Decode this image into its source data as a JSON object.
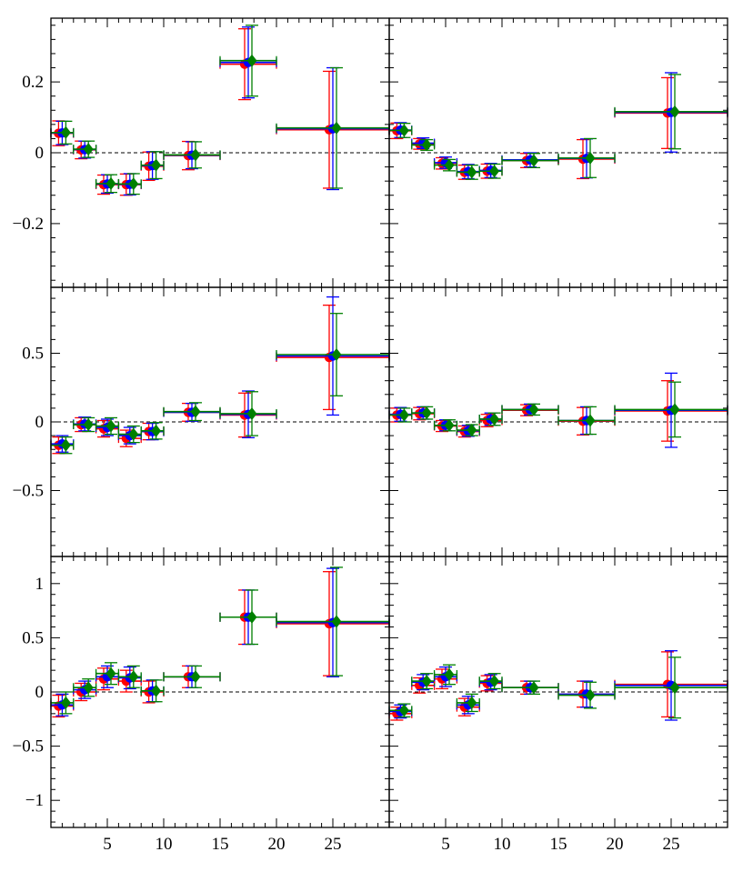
{
  "series_colors": [
    "#ff0000",
    "#0000ff",
    "#008000"
  ],
  "chart_data": [
    {
      "type": "scatter",
      "panel": "top-left",
      "xlim": [
        0,
        30
      ],
      "ylim": [
        -0.38,
        0.38
      ],
      "x_ticks": [],
      "y_ticks": [
        -0.2,
        0,
        0.2
      ],
      "y_tick_labels": [
        "−0.2",
        "0",
        "0.2"
      ],
      "zero_line": true,
      "points": [
        {
          "xlo": 0,
          "xhi": 2,
          "x": 1,
          "ys": [
            0.055,
            0.056,
            0.057
          ],
          "errs": [
            0.035,
            0.033,
            0.032
          ]
        },
        {
          "xlo": 2,
          "xhi": 4,
          "x": 3,
          "ys": [
            0.008,
            0.009,
            0.01
          ],
          "errs": [
            0.025,
            0.024,
            0.023
          ]
        },
        {
          "xlo": 4,
          "xhi": 6,
          "x": 5,
          "ys": [
            -0.09,
            -0.088,
            -0.087
          ],
          "errs": [
            0.027,
            0.026,
            0.025
          ]
        },
        {
          "xlo": 6,
          "xhi": 8,
          "x": 7,
          "ys": [
            -0.09,
            -0.089,
            -0.088
          ],
          "errs": [
            0.03,
            0.03,
            0.029
          ]
        },
        {
          "xlo": 8,
          "xhi": 10,
          "x": 9,
          "ys": [
            -0.038,
            -0.036,
            -0.035
          ],
          "errs": [
            0.04,
            0.039,
            0.038
          ]
        },
        {
          "xlo": 10,
          "xhi": 15,
          "x": 12.5,
          "ys": [
            -0.008,
            -0.007,
            -0.006
          ],
          "errs": [
            0.04,
            0.038,
            0.037
          ]
        },
        {
          "xlo": 15,
          "xhi": 20,
          "x": 17.5,
          "ys": [
            0.25,
            0.255,
            0.26
          ],
          "errs": [
            0.1,
            0.1,
            0.1
          ]
        },
        {
          "xlo": 20,
          "xhi": 30,
          "x": 25,
          "ys": [
            0.065,
            0.068,
            0.07
          ],
          "errs": [
            0.165,
            0.172,
            0.17
          ]
        }
      ]
    },
    {
      "type": "scatter",
      "panel": "top-right",
      "xlim": [
        0,
        30
      ],
      "ylim": [
        -0.38,
        0.38
      ],
      "x_ticks": [],
      "y_ticks": [],
      "y_tick_labels": [],
      "zero_line": true,
      "points": [
        {
          "xlo": 0,
          "xhi": 2,
          "x": 1,
          "ys": [
            0.062,
            0.064,
            0.063
          ],
          "errs": [
            0.022,
            0.021,
            0.02
          ]
        },
        {
          "xlo": 2,
          "xhi": 4,
          "x": 3,
          "ys": [
            0.025,
            0.027,
            0.022
          ],
          "errs": [
            0.015,
            0.015,
            0.015
          ]
        },
        {
          "xlo": 4,
          "xhi": 6,
          "x": 5,
          "ys": [
            -0.03,
            -0.028,
            -0.035
          ],
          "errs": [
            0.016,
            0.016,
            0.016
          ]
        },
        {
          "xlo": 6,
          "xhi": 8,
          "x": 7,
          "ys": [
            -0.055,
            -0.053,
            -0.055
          ],
          "errs": [
            0.02,
            0.02,
            0.02
          ]
        },
        {
          "xlo": 8,
          "xhi": 10,
          "x": 9,
          "ys": [
            -0.052,
            -0.05,
            -0.052
          ],
          "errs": [
            0.02,
            0.02,
            0.02
          ]
        },
        {
          "xlo": 10,
          "xhi": 15,
          "x": 12.5,
          "ys": [
            -0.022,
            -0.02,
            -0.022
          ],
          "errs": [
            0.02,
            0.02,
            0.02
          ]
        },
        {
          "xlo": 15,
          "xhi": 20,
          "x": 17.5,
          "ys": [
            -0.018,
            -0.016,
            -0.015
          ],
          "errs": [
            0.055,
            0.055,
            0.055
          ]
        },
        {
          "xlo": 20,
          "xhi": 30,
          "x": 25,
          "ys": [
            0.112,
            0.114,
            0.116
          ],
          "errs": [
            0.1,
            0.112,
            0.105
          ]
        }
      ]
    },
    {
      "type": "scatter",
      "panel": "middle-left",
      "xlim": [
        0,
        30
      ],
      "ylim": [
        -0.98,
        0.98
      ],
      "x_ticks": [],
      "y_ticks": [
        -0.5,
        0,
        0.5
      ],
      "y_tick_labels": [
        "−0.5",
        "0",
        "0.5"
      ],
      "zero_line": true,
      "points": [
        {
          "xlo": 0,
          "xhi": 2,
          "x": 1,
          "ys": [
            -0.17,
            -0.16,
            -0.17
          ],
          "errs": [
            0.06,
            0.06,
            0.06
          ]
        },
        {
          "xlo": 2,
          "xhi": 4,
          "x": 3,
          "ys": [
            -0.02,
            -0.015,
            -0.02
          ],
          "errs": [
            0.05,
            0.05,
            0.05
          ]
        },
        {
          "xlo": 4,
          "xhi": 6,
          "x": 5,
          "ys": [
            -0.05,
            -0.04,
            -0.03
          ],
          "errs": [
            0.06,
            0.06,
            0.06
          ]
        },
        {
          "xlo": 6,
          "xhi": 8,
          "x": 7,
          "ys": [
            -0.12,
            -0.1,
            -0.09
          ],
          "errs": [
            0.06,
            0.06,
            0.06
          ]
        },
        {
          "xlo": 8,
          "xhi": 10,
          "x": 9,
          "ys": [
            -0.07,
            -0.07,
            -0.065
          ],
          "errs": [
            0.06,
            0.06,
            0.06
          ]
        },
        {
          "xlo": 10,
          "xhi": 15,
          "x": 12.5,
          "ys": [
            0.07,
            0.07,
            0.075
          ],
          "errs": [
            0.065,
            0.065,
            0.065
          ]
        },
        {
          "xlo": 15,
          "xhi": 20,
          "x": 17.5,
          "ys": [
            0.05,
            0.055,
            0.06
          ],
          "errs": [
            0.16,
            0.17,
            0.16
          ]
        },
        {
          "xlo": 20,
          "xhi": 30,
          "x": 25,
          "ys": [
            0.47,
            0.48,
            0.49
          ],
          "errs": [
            0.38,
            0.43,
            0.3
          ]
        }
      ]
    },
    {
      "type": "scatter",
      "panel": "middle-right",
      "xlim": [
        0,
        30
      ],
      "ylim": [
        -0.98,
        0.98
      ],
      "x_ticks": [],
      "y_ticks": [],
      "y_tick_labels": [],
      "zero_line": true,
      "points": [
        {
          "xlo": 0,
          "xhi": 2,
          "x": 1,
          "ys": [
            0.05,
            0.055,
            0.05
          ],
          "errs": [
            0.05,
            0.05,
            0.05
          ]
        },
        {
          "xlo": 2,
          "xhi": 4,
          "x": 3,
          "ys": [
            0.06,
            0.065,
            0.065
          ],
          "errs": [
            0.045,
            0.045,
            0.045
          ]
        },
        {
          "xlo": 4,
          "xhi": 6,
          "x": 5,
          "ys": [
            -0.03,
            -0.025,
            -0.025
          ],
          "errs": [
            0.04,
            0.04,
            0.04
          ]
        },
        {
          "xlo": 6,
          "xhi": 8,
          "x": 7,
          "ys": [
            -0.07,
            -0.065,
            -0.06
          ],
          "errs": [
            0.04,
            0.04,
            0.04
          ]
        },
        {
          "xlo": 8,
          "xhi": 10,
          "x": 9,
          "ys": [
            0.01,
            0.02,
            0.02
          ],
          "errs": [
            0.045,
            0.045,
            0.045
          ]
        },
        {
          "xlo": 10,
          "xhi": 15,
          "x": 12.5,
          "ys": [
            0.085,
            0.09,
            0.09
          ],
          "errs": [
            0.04,
            0.04,
            0.04
          ]
        },
        {
          "xlo": 15,
          "xhi": 20,
          "x": 17.5,
          "ys": [
            0.005,
            0.01,
            0.01
          ],
          "errs": [
            0.1,
            0.1,
            0.1
          ]
        },
        {
          "xlo": 20,
          "xhi": 30,
          "x": 25,
          "ys": [
            0.08,
            0.085,
            0.09
          ],
          "errs": [
            0.22,
            0.27,
            0.2
          ]
        }
      ]
    },
    {
      "type": "scatter",
      "panel": "bottom-left",
      "xlim": [
        0,
        30
      ],
      "ylim": [
        -1.25,
        1.25
      ],
      "x_ticks": [
        5,
        10,
        15,
        20,
        25
      ],
      "y_ticks": [
        -1,
        -0.5,
        0,
        0.5,
        1
      ],
      "y_tick_labels": [
        "−1",
        "−0.5",
        "0",
        "0.5",
        "1"
      ],
      "zero_line": true,
      "points": [
        {
          "xlo": 0,
          "xhi": 2,
          "x": 1,
          "ys": [
            -0.13,
            -0.12,
            -0.1
          ],
          "errs": [
            0.1,
            0.1,
            0.1
          ]
        },
        {
          "xlo": 2,
          "xhi": 4,
          "x": 3,
          "ys": [
            0.0,
            0.02,
            0.04
          ],
          "errs": [
            0.08,
            0.08,
            0.08
          ]
        },
        {
          "xlo": 4,
          "xhi": 6,
          "x": 5,
          "ys": [
            0.12,
            0.14,
            0.17
          ],
          "errs": [
            0.1,
            0.1,
            0.1
          ]
        },
        {
          "xlo": 6,
          "xhi": 8,
          "x": 7,
          "ys": [
            0.1,
            0.13,
            0.14
          ],
          "errs": [
            0.1,
            0.1,
            0.1
          ]
        },
        {
          "xlo": 8,
          "xhi": 10,
          "x": 9,
          "ys": [
            0.0,
            0.01,
            0.01
          ],
          "errs": [
            0.1,
            0.1,
            0.1
          ]
        },
        {
          "xlo": 10,
          "xhi": 15,
          "x": 12.5,
          "ys": [
            0.14,
            0.14,
            0.14
          ],
          "errs": [
            0.1,
            0.1,
            0.1
          ]
        },
        {
          "xlo": 15,
          "xhi": 20,
          "x": 17.5,
          "ys": [
            0.69,
            0.69,
            0.69
          ],
          "errs": [
            0.25,
            0.25,
            0.25
          ]
        },
        {
          "xlo": 20,
          "xhi": 30,
          "x": 25,
          "ys": [
            0.63,
            0.64,
            0.65
          ],
          "errs": [
            0.48,
            0.5,
            0.5
          ]
        }
      ]
    },
    {
      "type": "scatter",
      "panel": "bottom-right",
      "xlim": [
        0,
        30
      ],
      "ylim": [
        -1.25,
        1.25
      ],
      "x_ticks": [
        5,
        10,
        15,
        20,
        25
      ],
      "y_ticks": [],
      "y_tick_labels": [],
      "zero_line": true,
      "points": [
        {
          "xlo": 0,
          "xhi": 2,
          "x": 1,
          "ys": [
            -0.2,
            -0.18,
            -0.17
          ],
          "errs": [
            0.06,
            0.06,
            0.06
          ]
        },
        {
          "xlo": 2,
          "xhi": 4,
          "x": 3,
          "ys": [
            0.06,
            0.09,
            0.1
          ],
          "errs": [
            0.07,
            0.07,
            0.07
          ]
        },
        {
          "xlo": 4,
          "xhi": 6,
          "x": 5,
          "ys": [
            0.12,
            0.14,
            0.16
          ],
          "errs": [
            0.09,
            0.09,
            0.09
          ]
        },
        {
          "xlo": 6,
          "xhi": 8,
          "x": 7,
          "ys": [
            -0.14,
            -0.12,
            -0.1
          ],
          "errs": [
            0.08,
            0.08,
            0.08
          ]
        },
        {
          "xlo": 8,
          "xhi": 10,
          "x": 9,
          "ys": [
            0.08,
            0.09,
            0.1
          ],
          "errs": [
            0.07,
            0.07,
            0.07
          ]
        },
        {
          "xlo": 10,
          "xhi": 15,
          "x": 12.5,
          "ys": [
            0.04,
            0.04,
            0.04
          ],
          "errs": [
            0.06,
            0.06,
            0.06
          ]
        },
        {
          "xlo": 15,
          "xhi": 20,
          "x": 17.5,
          "ys": [
            -0.02,
            -0.02,
            -0.03
          ],
          "errs": [
            0.12,
            0.12,
            0.12
          ]
        },
        {
          "xlo": 20,
          "xhi": 30,
          "x": 25,
          "ys": [
            0.07,
            0.06,
            0.04
          ],
          "errs": [
            0.3,
            0.32,
            0.28
          ]
        }
      ]
    }
  ]
}
